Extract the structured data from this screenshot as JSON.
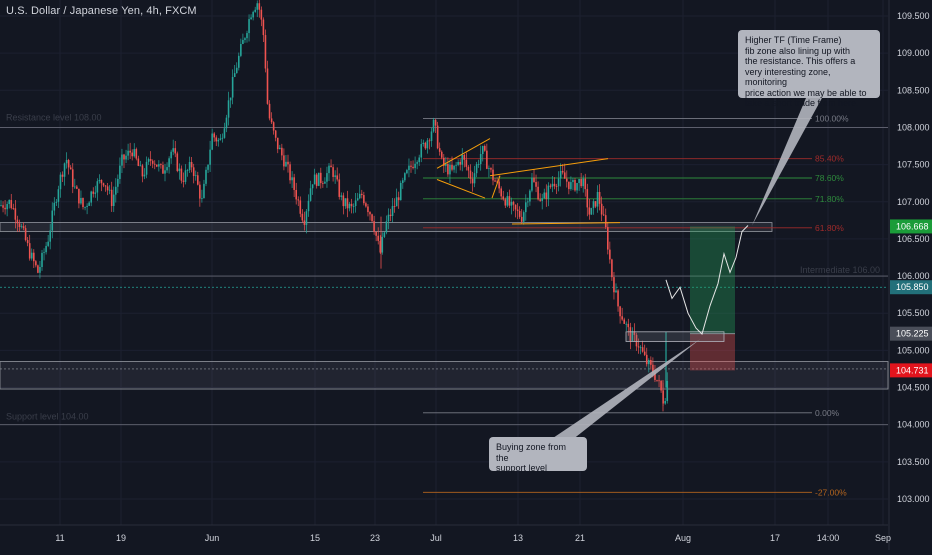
{
  "title": "U.S. Dollar / Japanese Yen, 4h, FXCM",
  "colors": {
    "background": "#131722",
    "grid": "#1c2030",
    "up": "#26a69a",
    "down": "#ef5350",
    "level_line": "#787b86",
    "fib_100": "#787b86",
    "fib_85": "#a02b2b",
    "fib_786": "#2e8b3c",
    "fib_718": "#2e8b3c",
    "fib_618": "#a02b2b",
    "fib_0": "#787b86",
    "fib_neg27": "#b5651d",
    "trendline": "#f59e0b",
    "badge_green": "#1b9c39",
    "badge_red": "#e2141d",
    "badge_gray": "#4a4e59",
    "badge_teal": "#22707a"
  },
  "chart_data": {
    "type": "candlestick",
    "y_range": [
      102.8,
      109.85
    ],
    "price_axis_ticks": [
      "109.500",
      "109.000",
      "108.500",
      "108.000",
      "107.500",
      "107.000",
      "106.500",
      "106.000",
      "105.500",
      "105.000",
      "104.500",
      "104.000",
      "103.500",
      "103.000"
    ],
    "time_axis_labels": [
      "11",
      "19",
      "Jun",
      "15",
      "23",
      "Jul",
      "13",
      "21",
      "Aug",
      "17",
      "14:00",
      "Sep"
    ],
    "fib_levels": [
      {
        "label": "100.00%",
        "price": 108.12
      },
      {
        "label": "85.40%",
        "price": 107.58
      },
      {
        "label": "78.60%",
        "price": 107.32
      },
      {
        "label": "71.80%",
        "price": 107.04
      },
      {
        "label": "61.80%",
        "price": 106.65
      },
      {
        "label": "0.00%",
        "price": 104.16
      },
      {
        "label": "-27.00%",
        "price": 103.09
      }
    ],
    "horizontal_levels": [
      {
        "label": "Resistance level 108.00",
        "price": 108.0
      },
      {
        "label": "Intermediate 106.00",
        "price": 106.0
      },
      {
        "label": "Support level 104.00",
        "price": 104.0
      }
    ],
    "price_labels": [
      {
        "value": "106.668",
        "kind": "green",
        "price": 106.668
      },
      {
        "value": "105.850",
        "kind": "teal",
        "price": 105.85
      },
      {
        "value": "105.225",
        "kind": "gray",
        "price": 105.225
      },
      {
        "value": "104.731",
        "kind": "red",
        "price": 104.731
      }
    ],
    "position": {
      "entry": 105.225,
      "target": 106.668,
      "stop": 104.731
    }
  },
  "annotations": {
    "resistance_note": "Higher TF (Time Frame)\nfib zone also lining up with\nthe resistance. This offers a\nvery interesting zone, monitoring\nprice action we may be able to\ntake a short trade from here.",
    "support_note": "Buying zone from the\nsupport level"
  }
}
